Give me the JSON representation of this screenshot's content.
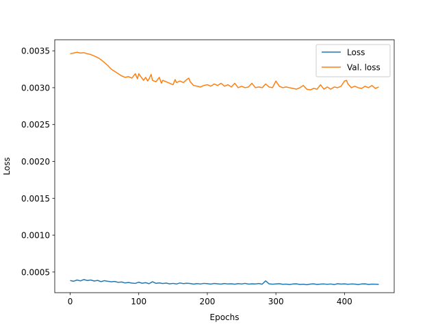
{
  "chart_data": {
    "type": "line",
    "title": "",
    "xlabel": "Epochs",
    "ylabel": "Loss",
    "xlim": [
      -22.5,
      472.5
    ],
    "ylim": [
      0.00022,
      0.00365
    ],
    "xticks": [
      0,
      100,
      200,
      300,
      400
    ],
    "xtick_labels": [
      "0",
      "100",
      "200",
      "300",
      "400"
    ],
    "yticks": [
      0.0005,
      0.001,
      0.0015,
      0.002,
      0.0025,
      0.003,
      0.0035
    ],
    "ytick_labels": [
      "0.0005",
      "0.0010",
      "0.0015",
      "0.0020",
      "0.0025",
      "0.0030",
      "0.0035"
    ],
    "grid": false,
    "legend_position": "top-right",
    "series": [
      {
        "name": "Loss",
        "color": "#1f77b4",
        "x": [
          0,
          5,
          10,
          15,
          20,
          25,
          30,
          35,
          40,
          45,
          50,
          55,
          60,
          65,
          70,
          75,
          80,
          85,
          90,
          95,
          100,
          105,
          110,
          115,
          120,
          125,
          130,
          135,
          140,
          145,
          150,
          155,
          160,
          165,
          170,
          175,
          180,
          185,
          190,
          195,
          200,
          205,
          210,
          215,
          220,
          225,
          230,
          235,
          240,
          245,
          250,
          255,
          260,
          265,
          270,
          275,
          280,
          285,
          290,
          295,
          300,
          305,
          310,
          315,
          320,
          325,
          330,
          335,
          340,
          345,
          350,
          355,
          360,
          365,
          370,
          375,
          380,
          385,
          390,
          395,
          400,
          405,
          410,
          415,
          420,
          425,
          430,
          435,
          440,
          445,
          450
        ],
        "values": [
          0.000385,
          0.000375,
          0.000392,
          0.00038,
          0.000398,
          0.000385,
          0.000392,
          0.000378,
          0.000386,
          0.00037,
          0.000383,
          0.000374,
          0.000368,
          0.000372,
          0.00036,
          0.000365,
          0.000352,
          0.000358,
          0.00035,
          0.000346,
          0.000362,
          0.000348,
          0.000356,
          0.000342,
          0.000368,
          0.000347,
          0.000352,
          0.000344,
          0.00035,
          0.00034,
          0.000346,
          0.000338,
          0.000352,
          0.000343,
          0.000348,
          0.000344,
          0.000336,
          0.000343,
          0.000338,
          0.000346,
          0.000342,
          0.000336,
          0.000345,
          0.00034,
          0.000336,
          0.000344,
          0.000338,
          0.000341,
          0.000335,
          0.000343,
          0.000338,
          0.000346,
          0.000336,
          0.00034,
          0.000338,
          0.000344,
          0.000335,
          0.00038,
          0.00034,
          0.000335,
          0.000338,
          0.000342,
          0.000334,
          0.000336,
          0.00033,
          0.000338,
          0.00034,
          0.000332,
          0.000335,
          0.000328,
          0.000336,
          0.00034,
          0.000332,
          0.000336,
          0.000338,
          0.000334,
          0.000338,
          0.00033,
          0.000342,
          0.000336,
          0.00034,
          0.000334,
          0.000338,
          0.000336,
          0.00033,
          0.000338,
          0.00034,
          0.000332,
          0.000336,
          0.000335,
          0.000333
        ]
      },
      {
        "name": "Val. loss",
        "color": "#ff7f0e",
        "x": [
          0,
          5,
          10,
          15,
          20,
          25,
          30,
          35,
          40,
          45,
          50,
          55,
          60,
          65,
          70,
          75,
          80,
          85,
          90,
          95,
          98,
          100,
          103,
          107,
          110,
          113,
          115,
          118,
          120,
          125,
          130,
          133,
          135,
          140,
          145,
          150,
          153,
          155,
          160,
          165,
          170,
          173,
          175,
          180,
          185,
          190,
          195,
          200,
          205,
          210,
          215,
          220,
          225,
          230,
          235,
          240,
          245,
          250,
          255,
          260,
          265,
          270,
          275,
          280,
          285,
          290,
          295,
          300,
          305,
          310,
          315,
          320,
          325,
          330,
          335,
          340,
          345,
          350,
          355,
          360,
          365,
          370,
          375,
          380,
          385,
          390,
          395,
          400,
          403,
          405,
          410,
          415,
          420,
          425,
          430,
          435,
          440,
          445,
          450
        ],
        "values": [
          0.00346,
          0.00347,
          0.00348,
          0.00347,
          0.003475,
          0.00346,
          0.00345,
          0.00343,
          0.00341,
          0.00338,
          0.00334,
          0.0033,
          0.00325,
          0.00322,
          0.00319,
          0.00316,
          0.00314,
          0.00315,
          0.00313,
          0.00319,
          0.00312,
          0.00319,
          0.00315,
          0.0031,
          0.00314,
          0.00309,
          0.00312,
          0.00318,
          0.0031,
          0.00308,
          0.00314,
          0.00306,
          0.0031,
          0.00308,
          0.00306,
          0.00304,
          0.00311,
          0.00307,
          0.00309,
          0.00307,
          0.00311,
          0.00313,
          0.00308,
          0.00303,
          0.00302,
          0.00301,
          0.00303,
          0.00304,
          0.00302,
          0.00305,
          0.00303,
          0.00306,
          0.00302,
          0.00304,
          0.00301,
          0.00306,
          0.003,
          0.00302,
          0.003,
          0.00301,
          0.00306,
          0.003,
          0.00301,
          0.003,
          0.00305,
          0.00301,
          0.003,
          0.00309,
          0.00302,
          0.003,
          0.00301,
          0.003,
          0.00299,
          0.00298,
          0.003,
          0.00303,
          0.00298,
          0.00297,
          0.00299,
          0.00298,
          0.00304,
          0.00298,
          0.00301,
          0.00298,
          0.00301,
          0.003,
          0.00302,
          0.00309,
          0.0031,
          0.00305,
          0.003,
          0.00302,
          0.003,
          0.00299,
          0.00302,
          0.003,
          0.00303,
          0.00299,
          0.00301
        ]
      }
    ]
  }
}
